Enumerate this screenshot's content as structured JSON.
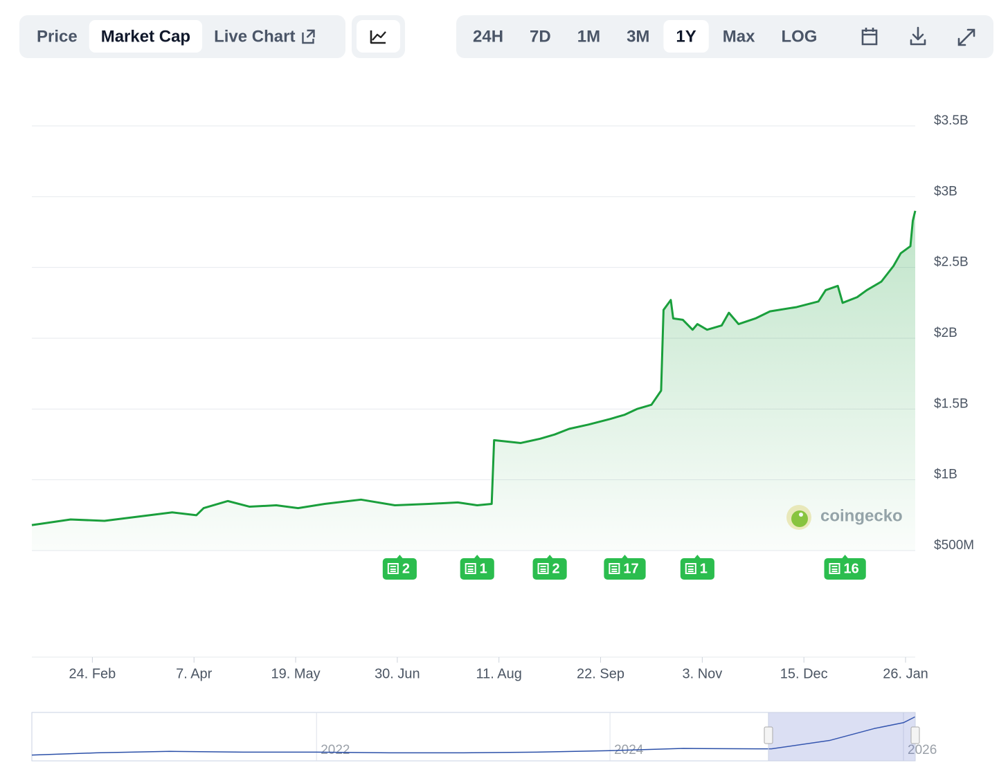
{
  "chart_data": {
    "type": "area",
    "tabs": [
      "Price",
      "Market Cap",
      "Live Chart"
    ],
    "active_tab": 1,
    "ranges": [
      "24H",
      "7D",
      "1M",
      "3M",
      "1Y",
      "Max",
      "LOG"
    ],
    "active_range": 4,
    "watermark": "coingecko",
    "color": "#1a9f3c",
    "x": [
      0,
      4,
      16,
      30,
      44,
      58,
      68,
      71,
      81,
      90,
      101,
      110,
      121,
      136,
      150,
      164,
      176,
      184,
      190,
      191,
      202,
      210,
      216,
      222,
      230,
      239,
      245,
      250,
      256,
      260,
      261,
      264,
      265,
      269,
      273,
      275,
      279,
      285,
      288,
      292,
      299,
      305,
      316,
      325,
      328,
      333,
      335,
      341,
      345,
      351,
      356,
      359,
      363,
      364,
      365
    ],
    "values": [
      0.68,
      0.69,
      0.72,
      0.71,
      0.74,
      0.77,
      0.75,
      0.8,
      0.85,
      0.81,
      0.82,
      0.8,
      0.83,
      0.86,
      0.82,
      0.83,
      0.84,
      0.82,
      0.83,
      1.28,
      1.26,
      1.29,
      1.32,
      1.36,
      1.39,
      1.43,
      1.46,
      1.5,
      1.53,
      1.63,
      2.2,
      2.27,
      2.14,
      2.13,
      2.06,
      2.1,
      2.06,
      2.09,
      2.18,
      2.1,
      2.14,
      2.19,
      2.22,
      2.26,
      2.34,
      2.37,
      2.25,
      2.29,
      2.34,
      2.4,
      2.51,
      2.6,
      2.65,
      2.83,
      2.9
    ],
    "xlim": [
      0,
      365
    ],
    "xticks": [
      {
        "value": 25,
        "label": "24. Feb"
      },
      {
        "value": 67,
        "label": "7. Apr"
      },
      {
        "value": 109,
        "label": "19. May"
      },
      {
        "value": 151,
        "label": "30. Jun"
      },
      {
        "value": 193,
        "label": "11. Aug"
      },
      {
        "value": 235,
        "label": "22. Sep"
      },
      {
        "value": 277,
        "label": "3. Nov"
      },
      {
        "value": 319,
        "label": "15. Dec"
      },
      {
        "value": 361,
        "label": "26. Jan"
      }
    ],
    "ylim": [
      0.5,
      3.5
    ],
    "yticks": [
      {
        "value": 0.5,
        "label": "$500M"
      },
      {
        "value": 1,
        "label": "$1B"
      },
      {
        "value": 1.5,
        "label": "$1.5B"
      },
      {
        "value": 2,
        "label": "$2B"
      },
      {
        "value": 2.5,
        "label": "$2.5B"
      },
      {
        "value": 3,
        "label": "$3B"
      },
      {
        "value": 3.5,
        "label": "$3.5B"
      }
    ],
    "grid": true,
    "news": {
      "x": [
        152,
        184,
        214,
        245,
        275,
        336
      ],
      "counts": [
        2,
        1,
        2,
        17,
        1,
        16
      ]
    },
    "navigator": {
      "xlim": [
        2020.06,
        2026.08
      ],
      "ylim": [
        0,
        3.1
      ],
      "xticks": [
        2022,
        2024,
        2026
      ],
      "x": [
        2020.06,
        2020.5,
        2021,
        2021.5,
        2022,
        2022.5,
        2023,
        2023.5,
        2024,
        2024.5,
        2025,
        2025.1,
        2025.5,
        2025.8,
        2026,
        2026.08
      ],
      "values": [
        0.3,
        0.45,
        0.55,
        0.5,
        0.5,
        0.45,
        0.45,
        0.5,
        0.6,
        0.75,
        0.72,
        0.72,
        1.3,
        2.1,
        2.5,
        2.9
      ]
    }
  }
}
